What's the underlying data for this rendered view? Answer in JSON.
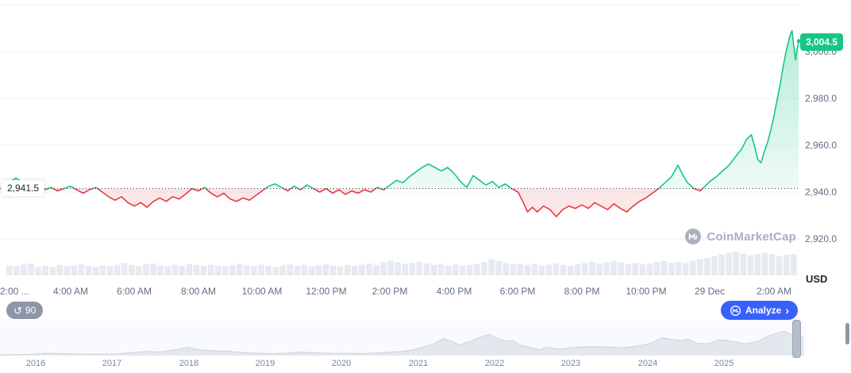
{
  "colors": {
    "green": "#16c784",
    "red": "#ea3943",
    "blue": "#3861fb",
    "grid": "#eff2f5",
    "axis_text": "#616e85",
    "dark_text": "#222531",
    "volume_bar": "#e6eaf1",
    "nav_fill": "#e3e8ef",
    "nav_stroke": "#ccd3de",
    "watermark_gray": "#a9b0bf",
    "baseline_dotted": "#222531"
  },
  "watermark": {
    "text": "CoinMarketCap"
  },
  "controls": {
    "history_count": "90",
    "analyze_label": "Analyze",
    "analyze_chevron": "›"
  },
  "chart_data": {
    "type": "line",
    "title": "",
    "unit_label": "USD",
    "baseline": 2941.5,
    "baseline_label": "2,941.5",
    "last_price": 3004.5,
    "last_price_label": "3,004.5",
    "ylim": [
      2915,
      3012
    ],
    "grid_values": [
      3020,
      3000,
      2980,
      2960,
      2940,
      2920
    ],
    "y_ticks": [
      3000,
      2980,
      2960,
      2940,
      2920
    ],
    "y_tick_labels": [
      "3,000.0",
      "2,980.0",
      "2,960.0",
      "2,940.0",
      "2,920.0"
    ],
    "x_tick_hours": [
      0,
      2,
      4,
      6,
      8,
      10,
      12,
      14,
      16,
      18,
      20,
      22,
      24
    ],
    "x_tick_labels": [
      "2:00 ...",
      "4:00 AM",
      "6:00 AM",
      "8:00 AM",
      "10:00 AM",
      "12:00 PM",
      "2:00 PM",
      "4:00 PM",
      "6:00 PM",
      "8:00 PM",
      "10:00 PM",
      "29 Dec",
      "2:00 AM"
    ],
    "series": [
      [
        0,
        2943
      ],
      [
        0.15,
        2944.5
      ],
      [
        0.3,
        2946
      ],
      [
        0.45,
        2944.5
      ],
      [
        0.6,
        2943
      ],
      [
        0.8,
        2941.5
      ],
      [
        1,
        2942.5
      ],
      [
        1.2,
        2941
      ],
      [
        1.4,
        2942
      ],
      [
        1.6,
        2940.5
      ],
      [
        1.8,
        2941.5
      ],
      [
        2,
        2942.5
      ],
      [
        2.2,
        2941
      ],
      [
        2.4,
        2939.5
      ],
      [
        2.6,
        2941
      ],
      [
        2.8,
        2942
      ],
      [
        3,
        2940
      ],
      [
        3.2,
        2938
      ],
      [
        3.4,
        2936.5
      ],
      [
        3.6,
        2938
      ],
      [
        3.8,
        2935.5
      ],
      [
        4,
        2934
      ],
      [
        4.2,
        2935.5
      ],
      [
        4.4,
        2933.5
      ],
      [
        4.6,
        2936
      ],
      [
        4.8,
        2937.5
      ],
      [
        5,
        2936
      ],
      [
        5.2,
        2938
      ],
      [
        5.4,
        2937
      ],
      [
        5.6,
        2939
      ],
      [
        5.8,
        2941.5
      ],
      [
        6,
        2940.5
      ],
      [
        6.2,
        2942
      ],
      [
        6.4,
        2939.5
      ],
      [
        6.6,
        2938
      ],
      [
        6.8,
        2939.5
      ],
      [
        7,
        2937
      ],
      [
        7.2,
        2936
      ],
      [
        7.4,
        2937.5
      ],
      [
        7.6,
        2936.5
      ],
      [
        7.8,
        2938.5
      ],
      [
        8,
        2940.5
      ],
      [
        8.2,
        2942.5
      ],
      [
        8.4,
        2943.5
      ],
      [
        8.6,
        2942
      ],
      [
        8.8,
        2940.5
      ],
      [
        9,
        2942.5
      ],
      [
        9.2,
        2941
      ],
      [
        9.4,
        2943
      ],
      [
        9.6,
        2941.5
      ],
      [
        9.8,
        2940
      ],
      [
        10,
        2941.5
      ],
      [
        10.2,
        2939.5
      ],
      [
        10.4,
        2941
      ],
      [
        10.6,
        2939
      ],
      [
        10.8,
        2940.5
      ],
      [
        11,
        2939.5
      ],
      [
        11.2,
        2941
      ],
      [
        11.4,
        2940
      ],
      [
        11.6,
        2942
      ],
      [
        11.8,
        2941
      ],
      [
        12,
        2943
      ],
      [
        12.2,
        2945
      ],
      [
        12.4,
        2944
      ],
      [
        12.6,
        2946.5
      ],
      [
        12.8,
        2948.5
      ],
      [
        13,
        2950.5
      ],
      [
        13.2,
        2952
      ],
      [
        13.4,
        2950.5
      ],
      [
        13.6,
        2949
      ],
      [
        13.8,
        2950.5
      ],
      [
        14,
        2948
      ],
      [
        14.2,
        2944.5
      ],
      [
        14.4,
        2942
      ],
      [
        14.6,
        2947
      ],
      [
        14.8,
        2945
      ],
      [
        15,
        2943
      ],
      [
        15.2,
        2944.5
      ],
      [
        15.4,
        2942
      ],
      [
        15.6,
        2943.5
      ],
      [
        15.8,
        2941.5
      ],
      [
        16,
        2940
      ],
      [
        16.15,
        2936
      ],
      [
        16.3,
        2931.5
      ],
      [
        16.45,
        2933.5
      ],
      [
        16.6,
        2931.5
      ],
      [
        16.8,
        2934
      ],
      [
        17,
        2932.5
      ],
      [
        17.2,
        2929.5
      ],
      [
        17.4,
        2932.5
      ],
      [
        17.6,
        2934
      ],
      [
        17.8,
        2933
      ],
      [
        18,
        2934.5
      ],
      [
        18.2,
        2933
      ],
      [
        18.4,
        2935.5
      ],
      [
        18.6,
        2934
      ],
      [
        18.8,
        2932.5
      ],
      [
        19,
        2935
      ],
      [
        19.2,
        2933
      ],
      [
        19.4,
        2931.5
      ],
      [
        19.6,
        2934
      ],
      [
        19.8,
        2936
      ],
      [
        20,
        2937.5
      ],
      [
        20.2,
        2939.5
      ],
      [
        20.4,
        2941.5
      ],
      [
        20.6,
        2944
      ],
      [
        20.8,
        2946.5
      ],
      [
        21,
        2951.5
      ],
      [
        21.15,
        2947.5
      ],
      [
        21.3,
        2944
      ],
      [
        21.5,
        2941.5
      ],
      [
        21.7,
        2940.5
      ],
      [
        21.85,
        2942.5
      ],
      [
        22,
        2944.5
      ],
      [
        22.2,
        2946.5
      ],
      [
        22.4,
        2949
      ],
      [
        22.6,
        2951.5
      ],
      [
        22.8,
        2955
      ],
      [
        23,
        2958.5
      ],
      [
        23.15,
        2962.5
      ],
      [
        23.3,
        2964.5
      ],
      [
        23.4,
        2959.5
      ],
      [
        23.5,
        2954
      ],
      [
        23.6,
        2952.5
      ],
      [
        23.7,
        2957
      ],
      [
        23.8,
        2961
      ],
      [
        23.9,
        2966
      ],
      [
        24,
        2972
      ],
      [
        24.1,
        2979
      ],
      [
        24.2,
        2986
      ],
      [
        24.3,
        2994
      ],
      [
        24.4,
        3001
      ],
      [
        24.5,
        3006.5
      ],
      [
        24.57,
        3009
      ],
      [
        24.63,
        3002
      ],
      [
        24.68,
        2996.5
      ],
      [
        24.73,
        3001
      ],
      [
        24.78,
        3004.5
      ]
    ],
    "volume_rel": [
      0.42,
      0.38,
      0.45,
      0.5,
      0.36,
      0.4,
      0.35,
      0.44,
      0.38,
      0.42,
      0.47,
      0.4,
      0.36,
      0.42,
      0.38,
      0.45,
      0.52,
      0.44,
      0.4,
      0.46,
      0.5,
      0.42,
      0.38,
      0.44,
      0.4,
      0.47,
      0.43,
      0.39,
      0.45,
      0.41,
      0.38,
      0.44,
      0.48,
      0.42,
      0.39,
      0.45,
      0.4,
      0.36,
      0.42,
      0.46,
      0.4,
      0.44,
      0.38,
      0.43,
      0.47,
      0.41,
      0.38,
      0.44,
      0.4,
      0.45,
      0.5,
      0.44,
      0.56,
      0.62,
      0.55,
      0.48,
      0.52,
      0.58,
      0.5,
      0.44,
      0.48,
      0.42,
      0.46,
      0.4,
      0.44,
      0.48,
      0.56,
      0.68,
      0.6,
      0.52,
      0.46,
      0.5,
      0.44,
      0.48,
      0.42,
      0.46,
      0.5,
      0.44,
      0.4,
      0.46,
      0.52,
      0.58,
      0.5,
      0.56,
      0.62,
      0.54,
      0.48,
      0.52,
      0.46,
      0.5,
      0.56,
      0.6,
      0.54,
      0.58,
      0.52,
      0.62,
      0.68,
      0.74,
      0.8,
      0.88,
      0.95,
      1.0,
      0.92,
      0.85,
      0.9,
      0.96,
      0.88,
      0.8,
      0.86,
      0.9
    ],
    "navigator": {
      "year_labels": [
        "2016",
        "2017",
        "2018",
        "2019",
        "2020",
        "2021",
        "2022",
        "2023",
        "2024",
        "2025"
      ],
      "series": [
        [
          2015.55,
          0.01
        ],
        [
          2015.8,
          0.02
        ],
        [
          2016,
          0.03
        ],
        [
          2016.15,
          0.06
        ],
        [
          2016.3,
          0.05
        ],
        [
          2016.5,
          0.04
        ],
        [
          2016.7,
          0.03
        ],
        [
          2016.9,
          0.03
        ],
        [
          2017.1,
          0.04
        ],
        [
          2017.3,
          0.08
        ],
        [
          2017.5,
          0.12
        ],
        [
          2017.6,
          0.09
        ],
        [
          2017.75,
          0.13
        ],
        [
          2017.9,
          0.18
        ],
        [
          2018,
          0.24
        ],
        [
          2018.05,
          0.2
        ],
        [
          2018.15,
          0.16
        ],
        [
          2018.3,
          0.14
        ],
        [
          2018.4,
          0.12
        ],
        [
          2018.5,
          0.13
        ],
        [
          2018.6,
          0.1
        ],
        [
          2018.8,
          0.07
        ],
        [
          2018.95,
          0.05
        ],
        [
          2019.1,
          0.05
        ],
        [
          2019.3,
          0.06
        ],
        [
          2019.45,
          0.09
        ],
        [
          2019.6,
          0.08
        ],
        [
          2019.8,
          0.06
        ],
        [
          2020,
          0.05
        ],
        [
          2020.15,
          0.06
        ],
        [
          2020.25,
          0.04
        ],
        [
          2020.4,
          0.06
        ],
        [
          2020.6,
          0.08
        ],
        [
          2020.8,
          0.11
        ],
        [
          2021,
          0.18
        ],
        [
          2021.1,
          0.26
        ],
        [
          2021.2,
          0.32
        ],
        [
          2021.35,
          0.5
        ],
        [
          2021.45,
          0.42
        ],
        [
          2021.55,
          0.3
        ],
        [
          2021.65,
          0.38
        ],
        [
          2021.75,
          0.46
        ],
        [
          2021.85,
          0.56
        ],
        [
          2021.95,
          0.62
        ],
        [
          2022.05,
          0.5
        ],
        [
          2022.15,
          0.42
        ],
        [
          2022.25,
          0.44
        ],
        [
          2022.35,
          0.3
        ],
        [
          2022.5,
          0.22
        ],
        [
          2022.6,
          0.16
        ],
        [
          2022.7,
          0.24
        ],
        [
          2022.8,
          0.2
        ],
        [
          2022.9,
          0.18
        ],
        [
          2023,
          0.22
        ],
        [
          2023.1,
          0.24
        ],
        [
          2023.25,
          0.26
        ],
        [
          2023.4,
          0.25
        ],
        [
          2023.55,
          0.24
        ],
        [
          2023.7,
          0.22
        ],
        [
          2023.85,
          0.27
        ],
        [
          2024,
          0.32
        ],
        [
          2024.1,
          0.4
        ],
        [
          2024.2,
          0.52
        ],
        [
          2024.3,
          0.48
        ],
        [
          2024.45,
          0.44
        ],
        [
          2024.55,
          0.48
        ],
        [
          2024.65,
          0.36
        ],
        [
          2024.8,
          0.34
        ],
        [
          2024.95,
          0.46
        ],
        [
          2025.05,
          0.44
        ],
        [
          2025.15,
          0.4
        ],
        [
          2025.3,
          0.34
        ],
        [
          2025.45,
          0.42
        ],
        [
          2025.6,
          0.58
        ],
        [
          2025.7,
          0.66
        ],
        [
          2025.8,
          0.72
        ],
        [
          2025.9,
          0.6
        ],
        [
          2026,
          0.55
        ],
        [
          2026.05,
          0.58
        ]
      ]
    }
  }
}
